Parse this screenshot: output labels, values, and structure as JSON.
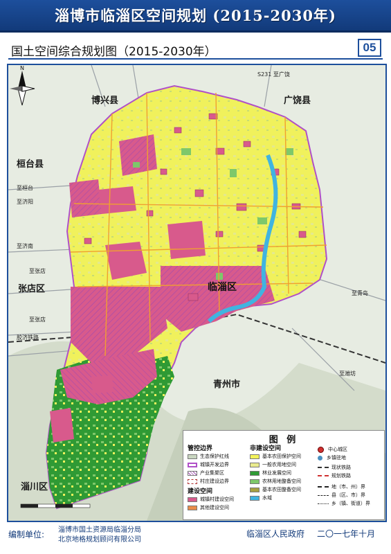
{
  "header": {
    "title": "淄博市临淄区空间规划 (2015-2030年)",
    "subtitle": "国土空间综合规划图（2015-2030年）",
    "page_number": "05"
  },
  "map": {
    "regions": {
      "boxing": "博兴县",
      "guangrao": "广饶县",
      "huantai": "桓台县",
      "zhangdian": "张店区",
      "linzi": "临淄区",
      "qingzhou": "青州市",
      "zichuan": "淄川区"
    },
    "roads": {
      "to_jinan_1": "至济阳",
      "to_jinan_2": "至济南",
      "to_zhangdian_1": "至张店",
      "to_zhangdian_2": "至张店",
      "to_qingdao": "至青岛",
      "to_weifang": "至潍坊",
      "to_huantai": "至桓台",
      "jiaoji": "胶济铁路",
      "s231": "S231 至广饶"
    },
    "north_label": "N",
    "colors": {
      "farmland": "#f2f25a",
      "general_farm": "#e9eb8e",
      "construction": "#d85a8c",
      "other_construction": "#e98c4a",
      "forest": "#2f9a34",
      "agri_forest_reserve": "#7ec86a",
      "water": "#40b4e0",
      "ecological": "#c9d6c0",
      "boundary": "#b050c8"
    }
  },
  "legend": {
    "title": "图  例",
    "control_boundary": "管控边界",
    "construction_space": "建设空间",
    "non_construction_space": "非建设空间",
    "items": {
      "eco_redline": "生态保护红线",
      "urban_boundary": "城镇开发边界",
      "industrial_zone": "产业集聚区",
      "village_boundary": "村庄建设边界",
      "town_village_construction": "城镇村建设空间",
      "other_construction": "其他建设空间",
      "basic_farmland": "基本农田保护空间",
      "general_farmland": "一般农用地空间",
      "forest_dev": "林业发展空间",
      "agri_forest_reserve": "农林用地整备空间",
      "farmland_reserve": "基本农田整备空间",
      "water": "水域",
      "central_city": "中心城区",
      "town_seat": "乡镇驻地",
      "existing_rail": "现状铁路",
      "planned_rail": "规划铁路",
      "city_boundary": "地（市、州）界",
      "county_boundary": "县（区、市）界",
      "town_boundary": "乡（镇、街道）界"
    }
  },
  "footer": {
    "lead": "编制单位:",
    "org1": "淄博市国土资源局临淄分局",
    "org2": "北京地格规划顾问有限公司",
    "gov": "临淄区人民政府",
    "date": "二〇一七年十月"
  }
}
